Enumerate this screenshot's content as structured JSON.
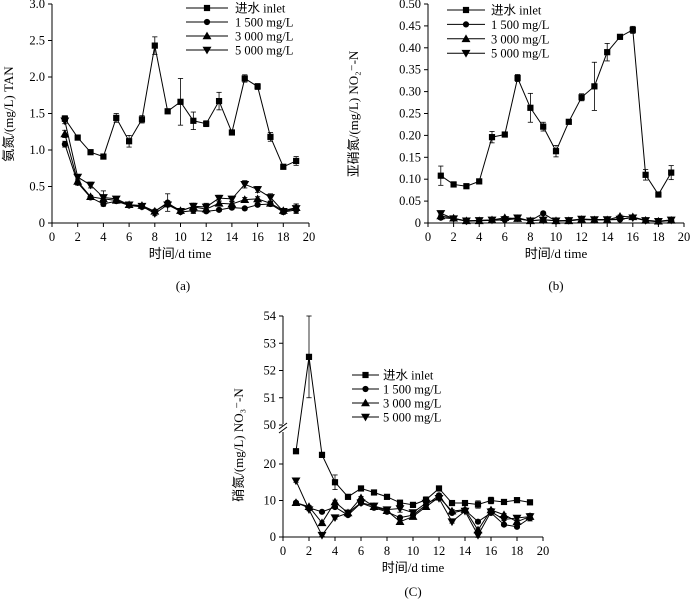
{
  "figure": {
    "background": "#ffffff",
    "ink_color": "#000000",
    "panel_captions": [
      "(a)",
      "(b)",
      "(C)"
    ]
  },
  "chart_data": [
    {
      "id": "a",
      "type": "line",
      "caption": "(a)",
      "xlabel": "时间/d time",
      "ylabel": "氨氮/(mg/L) TAN",
      "grid": false,
      "legend_position": "top-right-inside",
      "xlim": [
        0,
        20
      ],
      "x_ticks": [
        0,
        2,
        4,
        6,
        8,
        10,
        12,
        14,
        16,
        18,
        20
      ],
      "x_tick_labels": [
        "0",
        "2",
        "4",
        "6",
        "8",
        "10",
        "12",
        "14",
        "16",
        "18",
        "20"
      ],
      "y_axis": {
        "type": "linear",
        "min": 0,
        "max": 3.0,
        "ticks": [
          0,
          0.5,
          1.0,
          1.5,
          2.0,
          2.5,
          3.0
        ],
        "tick_labels": [
          "0",
          "0.5",
          "1.0",
          "1.5",
          "2.0",
          "2.5",
          "3.0"
        ]
      },
      "x": [
        1,
        2,
        3,
        4,
        5,
        6,
        7,
        8,
        9,
        10,
        11,
        12,
        13,
        14,
        15,
        16,
        17,
        18,
        19
      ],
      "series": [
        {
          "key": "inlet",
          "name": "进水 inlet",
          "marker": "square",
          "values": [
            1.43,
            1.17,
            0.97,
            0.91,
            1.44,
            1.12,
            1.42,
            2.43,
            1.53,
            1.66,
            1.4,
            1.36,
            1.67,
            1.24,
            1.98,
            1.87,
            1.18,
            0.77,
            0.85
          ],
          "errors": [
            0.04,
            0.02,
            0.03,
            0.03,
            0.06,
            0.08,
            0.05,
            0.12,
            0.03,
            0.32,
            0.12,
            0.04,
            0.12,
            0.02,
            0.05,
            0.04,
            0.06,
            0.02,
            0.06
          ]
        },
        {
          "key": "1500mgL",
          "name": "1 500 mg/L",
          "marker": "circle",
          "values": [
            1.08,
            0.55,
            0.35,
            0.26,
            0.3,
            0.24,
            0.22,
            0.16,
            0.28,
            0.15,
            0.17,
            0.16,
            0.18,
            0.21,
            0.2,
            0.25,
            0.26,
            0.15,
            0.18
          ],
          "errors": [
            0.04,
            0.03,
            0.02,
            0.03,
            0.03,
            0.02,
            0.02,
            0.02,
            0.12,
            0.02,
            0.04,
            0.02,
            0.02,
            0.02,
            0.02,
            0.02,
            0.03,
            0.03,
            0.05
          ]
        },
        {
          "key": "3000mgL",
          "name": "3 000 mg/L",
          "marker": "triangle-up",
          "values": [
            1.22,
            0.57,
            0.36,
            0.33,
            0.31,
            0.25,
            0.24,
            0.16,
            0.27,
            0.17,
            0.22,
            0.19,
            0.27,
            0.26,
            0.32,
            0.33,
            0.27,
            0.17,
            0.21
          ],
          "errors": [
            0.05,
            0.03,
            0.02,
            0.04,
            0.03,
            0.02,
            0.02,
            0.02,
            0.03,
            0.02,
            0.05,
            0.03,
            0.03,
            0.03,
            0.03,
            0.03,
            0.03,
            0.02,
            0.05
          ]
        },
        {
          "key": "5000mgL",
          "name": "5 000 mg/L",
          "marker": "triangle-down",
          "values": [
            1.4,
            0.63,
            0.52,
            0.35,
            0.33,
            0.25,
            0.23,
            0.13,
            0.25,
            0.16,
            0.23,
            0.22,
            0.34,
            0.33,
            0.53,
            0.46,
            0.35,
            0.16,
            0.2
          ],
          "errors": [
            0.04,
            0.03,
            0.04,
            0.09,
            0.03,
            0.03,
            0.03,
            0.03,
            0.03,
            0.02,
            0.04,
            0.05,
            0.04,
            0.03,
            0.05,
            0.04,
            0.05,
            0.03,
            0.06
          ]
        }
      ]
    },
    {
      "id": "b",
      "type": "line",
      "caption": "(b)",
      "xlabel": "时间/d time",
      "ylabel": "亚硝氮/(mg/L) NO₂⁻-N",
      "grid": false,
      "legend_position": "top-left-inside",
      "xlim": [
        0,
        20
      ],
      "x_ticks": [
        0,
        2,
        4,
        6,
        8,
        10,
        12,
        14,
        16,
        18,
        20
      ],
      "x_tick_labels": [
        "0",
        "2",
        "4",
        "6",
        "8",
        "10",
        "12",
        "14",
        "16",
        "18",
        "20"
      ],
      "y_axis": {
        "type": "linear",
        "min": 0,
        "max": 0.5,
        "ticks": [
          0,
          0.05,
          0.1,
          0.15,
          0.2,
          0.25,
          0.3,
          0.35,
          0.4,
          0.45,
          0.5
        ],
        "tick_labels": [
          "0",
          "0.05",
          "0.10",
          "0.15",
          "0.20",
          "0.25",
          "0.30",
          "0.35",
          "0.40",
          "0.45",
          "0.50"
        ]
      },
      "x": [
        1,
        2,
        3,
        4,
        5,
        6,
        7,
        8,
        9,
        10,
        11,
        12,
        13,
        14,
        15,
        16,
        17,
        18,
        19
      ],
      "series": [
        {
          "key": "inlet",
          "name": "进水 inlet",
          "marker": "square",
          "values": [
            0.108,
            0.088,
            0.084,
            0.095,
            0.196,
            0.202,
            0.331,
            0.263,
            0.22,
            0.164,
            0.231,
            0.287,
            0.312,
            0.39,
            0.425,
            0.441,
            0.11,
            0.065,
            0.115
          ],
          "errors": [
            0.022,
            0.006,
            0.003,
            0.004,
            0.013,
            0.005,
            0.008,
            0.033,
            0.01,
            0.013,
            0.005,
            0.008,
            0.055,
            0.02,
            0.005,
            0.008,
            0.012,
            0.003,
            0.016
          ]
        },
        {
          "key": "1500mgL",
          "name": "1 500 mg/L",
          "marker": "circle",
          "values": [
            0.012,
            0.01,
            0.004,
            0.005,
            0.006,
            0.007,
            0.01,
            0.005,
            0.022,
            0.004,
            0.005,
            0.008,
            0.007,
            0.007,
            0.008,
            0.013,
            0.005,
            0.003,
            0.006
          ],
          "errors": [
            0.004,
            0.003,
            0.002,
            0.002,
            0.002,
            0.002,
            0.003,
            0.002,
            0.003,
            0.002,
            0.002,
            0.002,
            0.002,
            0.002,
            0.002,
            0.003,
            0.002,
            0.002,
            0.002
          ]
        },
        {
          "key": "3000mgL",
          "name": "3 000 mg/L",
          "marker": "triangle-up",
          "values": [
            0.016,
            0.011,
            0.005,
            0.005,
            0.007,
            0.012,
            0.01,
            0.005,
            0.008,
            0.005,
            0.005,
            0.008,
            0.007,
            0.007,
            0.015,
            0.014,
            0.006,
            0.004,
            0.006
          ],
          "errors": [
            0.004,
            0.003,
            0.002,
            0.002,
            0.002,
            0.003,
            0.003,
            0.002,
            0.002,
            0.002,
            0.002,
            0.002,
            0.002,
            0.002,
            0.003,
            0.003,
            0.002,
            0.002,
            0.002
          ]
        },
        {
          "key": "5000mgL",
          "name": "5 000 mg/L",
          "marker": "triangle-down",
          "values": [
            0.022,
            0.01,
            0.005,
            0.006,
            0.007,
            0.008,
            0.012,
            0.005,
            0.007,
            0.005,
            0.006,
            0.009,
            0.008,
            0.008,
            0.009,
            0.012,
            0.006,
            0.004,
            0.007
          ],
          "errors": [
            0.005,
            0.003,
            0.002,
            0.002,
            0.002,
            0.002,
            0.003,
            0.002,
            0.002,
            0.002,
            0.002,
            0.002,
            0.002,
            0.002,
            0.002,
            0.003,
            0.002,
            0.002,
            0.002
          ]
        }
      ]
    },
    {
      "id": "c",
      "type": "line",
      "caption": "(C)",
      "xlabel": "时间/d time",
      "ylabel": "硝氮/(mg/L) NO₃⁻-N",
      "grid": false,
      "legend_position": "center-right-inside",
      "xlim": [
        0,
        20
      ],
      "x_ticks": [
        0,
        2,
        4,
        6,
        8,
        10,
        12,
        14,
        16,
        18,
        20
      ],
      "x_tick_labels": [
        "0",
        "2",
        "4",
        "6",
        "8",
        "10",
        "12",
        "14",
        "16",
        "18",
        "20"
      ],
      "y_axis": {
        "type": "broken",
        "segments": [
          {
            "min": 0,
            "max": 30,
            "ticks": [
              0,
              10,
              20
            ],
            "tick_labels": [
              "0",
              "10",
              "20"
            ]
          },
          {
            "min": 50,
            "max": 54,
            "ticks": [
              50,
              51,
              52,
              53,
              54
            ],
            "tick_labels": [
              "50",
              "51",
              "52",
              "53",
              "54"
            ]
          }
        ]
      },
      "x": [
        1,
        2,
        3,
        4,
        5,
        6,
        7,
        8,
        9,
        10,
        11,
        12,
        13,
        14,
        15,
        16,
        17,
        18,
        19
      ],
      "series": [
        {
          "key": "inlet",
          "name": "进水 inlet",
          "marker": "square",
          "values": [
            23.5,
            52.5,
            22.5,
            15.0,
            11.0,
            13.3,
            12.2,
            11.0,
            9.4,
            8.8,
            10.2,
            13.3,
            9.3,
            9.3,
            8.9,
            10.0,
            9.6,
            10.1,
            9.5
          ],
          "errors": [
            0.5,
            1.5,
            0.5,
            2.0,
            0.6,
            0.5,
            0.4,
            0.4,
            0.4,
            0.4,
            0.8,
            0.5,
            0.4,
            0.4,
            1.0,
            0.9,
            0.3,
            0.3,
            0.6
          ]
        },
        {
          "key": "1500mgL",
          "name": "1 500 mg/L",
          "marker": "circle",
          "values": [
            9.4,
            8.0,
            6.9,
            8.2,
            6.0,
            9.3,
            8.0,
            6.9,
            5.3,
            6.0,
            8.8,
            11.4,
            6.6,
            7.4,
            4.2,
            6.6,
            3.4,
            2.8,
            5.2
          ],
          "errors": [
            0.3,
            0.3,
            0.3,
            0.4,
            0.3,
            0.4,
            0.3,
            0.3,
            0.3,
            0.3,
            0.5,
            0.5,
            0.3,
            0.4,
            0.4,
            0.4,
            0.3,
            0.3,
            0.8
          ]
        },
        {
          "key": "3000mgL",
          "name": "3 000 mg/L",
          "marker": "triangle-up",
          "values": [
            9.4,
            8.3,
            3.9,
            9.6,
            6.6,
            10.7,
            8.3,
            7.2,
            4.2,
            5.6,
            8.3,
            10.9,
            7.1,
            7.5,
            1.9,
            7.4,
            6.1,
            4.2,
            5.6
          ],
          "errors": [
            0.3,
            0.3,
            0.4,
            0.5,
            0.3,
            0.4,
            0.3,
            0.3,
            0.4,
            0.3,
            0.4,
            0.5,
            0.4,
            0.4,
            0.5,
            0.4,
            0.3,
            0.3,
            0.8
          ]
        },
        {
          "key": "5000mgL",
          "name": "5 000 mg/L",
          "marker": "triangle-down",
          "values": [
            15.4,
            7.5,
            0.5,
            5.3,
            6.6,
            9.4,
            8.5,
            7.5,
            7.8,
            6.7,
            9.3,
            10.6,
            4.2,
            7.1,
            0.5,
            6.9,
            4.8,
            5.2,
            5.6
          ],
          "errors": [
            0.4,
            0.3,
            0.3,
            0.4,
            0.3,
            0.4,
            0.3,
            0.3,
            1.0,
            0.3,
            0.4,
            0.5,
            0.4,
            0.4,
            0.6,
            0.4,
            0.3,
            0.4,
            0.8
          ]
        }
      ]
    }
  ]
}
